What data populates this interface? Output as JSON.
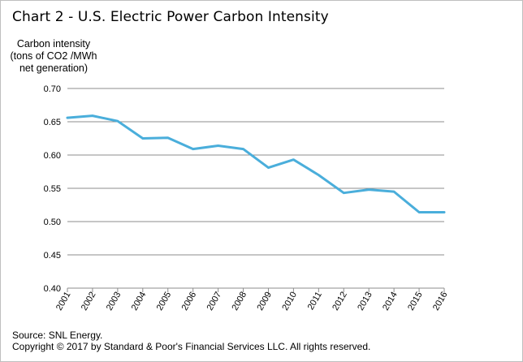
{
  "title": "Chart 2 - U.S. Electric Power Carbon Intensity",
  "y_axis_title": [
    "Carbon intensity",
    "(tons of CO2 /MWh",
    "net generation)"
  ],
  "source_line": "Source: SNL Energy.",
  "copyright_line": "Copyright © 2017 by Standard & Poor's Financial Services LLC. All rights reserved.",
  "colors": {
    "line": "#4aaedb",
    "grid": "#8c8c8c",
    "axis_text": "#000000"
  },
  "chart_data": {
    "type": "line",
    "title": "Chart 2 - U.S. Electric Power Carbon Intensity",
    "xlabel": "",
    "ylabel": "Carbon intensity (tons of CO2 /MWh net generation)",
    "ylim": [
      0.4,
      0.7
    ],
    "yticks": [
      "0.40",
      "0.45",
      "0.50",
      "0.55",
      "0.60",
      "0.65",
      "0.70"
    ],
    "categories": [
      "2001",
      "2002",
      "2003",
      "2004",
      "2005",
      "2006",
      "2007",
      "2008",
      "2009",
      "2010",
      "2011",
      "2012",
      "2013",
      "2014",
      "2015",
      "2016"
    ],
    "series": [
      {
        "values": [
          0.656,
          0.659,
          0.651,
          0.625,
          0.626,
          0.609,
          0.614,
          0.609,
          0.581,
          0.593,
          0.57,
          0.543,
          0.548,
          0.545,
          0.514,
          0.514
        ]
      }
    ],
    "grid": true,
    "legend": "none"
  }
}
